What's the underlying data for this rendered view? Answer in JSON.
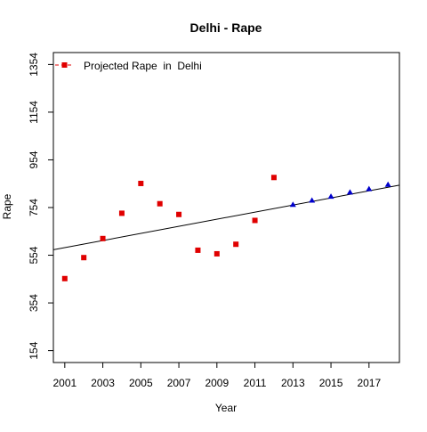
{
  "chart_data": {
    "type": "scatter",
    "title": "Delhi  -  Rape",
    "xlabel": "Year",
    "ylabel": "Rape",
    "xlim": [
      2000.4,
      2018.6
    ],
    "ylim": [
      104,
      1404
    ],
    "x_ticks": [
      2001,
      2003,
      2005,
      2007,
      2009,
      2011,
      2013,
      2015,
      2017
    ],
    "y_ticks": [
      154,
      354,
      554,
      754,
      954,
      1154,
      1354
    ],
    "grid": false,
    "legend": {
      "position": "top-left",
      "entries": [
        "Projected Rape  in  Delhi"
      ]
    },
    "series": [
      {
        "name": "",
        "color": "#e00000",
        "marker": "square",
        "points": [
          {
            "x": 2001,
            "y": 456
          },
          {
            "x": 2002,
            "y": 544
          },
          {
            "x": 2003,
            "y": 624
          },
          {
            "x": 2004,
            "y": 730
          },
          {
            "x": 2005,
            "y": 855
          },
          {
            "x": 2006,
            "y": 770
          },
          {
            "x": 2007,
            "y": 725
          },
          {
            "x": 2008,
            "y": 575
          },
          {
            "x": 2009,
            "y": 560
          },
          {
            "x": 2010,
            "y": 600
          },
          {
            "x": 2011,
            "y": 700
          },
          {
            "x": 2012,
            "y": 880
          }
        ]
      },
      {
        "name": "Projected Rape  in  Delhi",
        "color": "#0000cc",
        "marker": "triangle",
        "points": [
          {
            "x": 2013,
            "y": 766
          },
          {
            "x": 2014,
            "y": 784
          },
          {
            "x": 2015,
            "y": 800
          },
          {
            "x": 2016,
            "y": 818
          },
          {
            "x": 2017,
            "y": 832
          },
          {
            "x": 2018,
            "y": 850
          }
        ]
      }
    ],
    "trend_line": {
      "x": [
        2000.4,
        2018.6
      ],
      "y": [
        577,
        848
      ],
      "color": "#000000"
    }
  }
}
